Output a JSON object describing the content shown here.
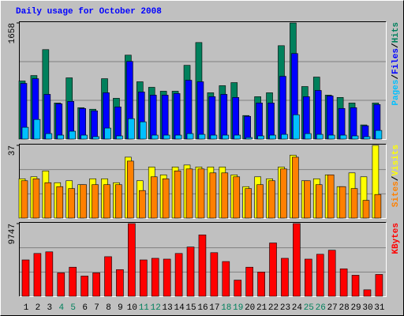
{
  "chart_data": [
    {
      "type": "bar",
      "title": "Daily usage for October 2008",
      "ylim": [
        0,
        1658
      ],
      "yticks": [
        1658
      ],
      "legend_separator": "/",
      "series": [
        {
          "name": "Hits",
          "color": "#00805c",
          "values": [
            829,
            907,
            1277,
            515,
            874,
            448,
            426,
            862,
            582,
            1198,
            818,
            739,
            683,
            683,
            1053,
            1378,
            661,
            762,
            806,
            336,
            605,
            661,
            1333,
            1658,
            750,
            885,
            627,
            594,
            515,
            202,
            515
          ]
        },
        {
          "name": "Files",
          "color": "#0000ff",
          "values": [
            795,
            862,
            638,
            504,
            538,
            437,
            403,
            661,
            459,
            1109,
            672,
            627,
            627,
            650,
            840,
            818,
            605,
            638,
            594,
            325,
            515,
            515,
            896,
            1221,
            605,
            694,
            616,
            437,
            448,
            190,
            493
          ]
        },
        {
          "name": "Pages",
          "color": "#00c0ff",
          "values": [
            168,
            280,
            78,
            56,
            112,
            56,
            34,
            157,
            45,
            291,
            246,
            56,
            56,
            56,
            78,
            67,
            56,
            56,
            56,
            22,
            45,
            56,
            67,
            347,
            78,
            67,
            56,
            56,
            45,
            34,
            123
          ]
        }
      ]
    },
    {
      "type": "bar",
      "ylim": [
        0,
        37
      ],
      "yticks": [
        37
      ],
      "legend_separator": "/",
      "series": [
        {
          "name": "Visits",
          "color": "#ffff00",
          "values": [
            20,
            21,
            24,
            18,
            19,
            17,
            20,
            20,
            18,
            31,
            19,
            26,
            22,
            26,
            27,
            26,
            26,
            26,
            22,
            16,
            21,
            20,
            26,
            32,
            19,
            20,
            22,
            16,
            23,
            21,
            37
          ]
        },
        {
          "name": "Sites",
          "color": "#ff8000",
          "values": [
            19,
            20,
            18,
            16,
            15,
            17,
            17,
            17,
            17,
            29,
            14,
            21,
            20,
            24,
            25,
            25,
            23,
            23,
            21,
            15,
            17,
            19,
            25,
            31,
            19,
            17,
            22,
            16,
            15,
            9,
            12
          ]
        }
      ]
    },
    {
      "type": "bar",
      "ylim": [
        0,
        9747
      ],
      "yticks": [
        9747
      ],
      "categories": [
        "1",
        "2",
        "3",
        "4",
        "5",
        "6",
        "7",
        "8",
        "9",
        "10",
        "11",
        "12",
        "13",
        "14",
        "15",
        "16",
        "17",
        "18",
        "19",
        "20",
        "21",
        "22",
        "23",
        "24",
        "25",
        "26",
        "27",
        "28",
        "29",
        "30",
        "31"
      ],
      "weekend": [
        "4",
        "5",
        "11",
        "12",
        "18",
        "19",
        "25",
        "26"
      ],
      "weekend_color": "#00805c",
      "category_color": "#000000",
      "series": [
        {
          "name": "KBytes",
          "color": "#ff0000",
          "values": [
            4874,
            5740,
            5956,
            3141,
            3898,
            2707,
            3141,
            5307,
            3574,
            9747,
            4874,
            5090,
            4982,
            5740,
            6606,
            8231,
            5848,
            4657,
            2166,
            3898,
            3249,
            7147,
            5090,
            9747,
            4982,
            5632,
            6173,
            3682,
            2816,
            866,
            2924
          ]
        }
      ]
    }
  ]
}
